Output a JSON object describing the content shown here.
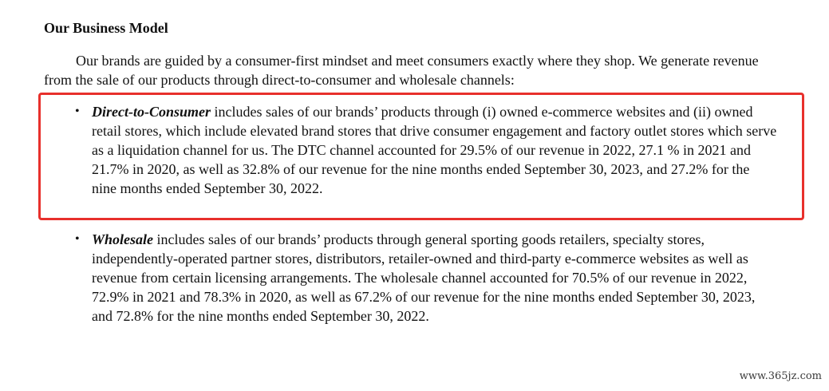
{
  "heading": "Our Business Model",
  "intro": "Our brands are guided by a consumer-first mindset and meet consumers exactly where they shop. We generate revenue from the sale of our products through direct-to-consumer and wholesale channels:",
  "bullets": [
    {
      "marker": "•",
      "term": "Direct-to-Consumer",
      "text": " includes sales of our brands’ products through (i) owned e-commerce websites and (ii) owned retail stores, which include elevated brand stores that drive consumer engagement and factory outlet stores which serve as a liquidation channel for us. The DTC channel accounted for 29.5% of our revenue in 2022, 27.1 % in 2021 and 21.7% in 2020, as well as 32.8% of our revenue for the nine months ended September 30, 2023, and 27.2% for the nine months ended September 30, 2022."
    },
    {
      "marker": "•",
      "term": "Wholesale",
      "text": " includes sales of our brands’ products through general sporting goods retailers, specialty stores, independently-operated partner stores, distributors, retailer-owned and third-party e-commerce websites as well as revenue from certain licensing arrangements. The wholesale channel accounted for 70.5% of our revenue in 2022, 72.9% in 2021 and 78.3% in 2020, as well as 67.2% of our revenue for the nine months ended September 30, 2023, and 72.8% for the nine months ended September 30, 2022."
    }
  ],
  "highlight_color": "#e8302c",
  "watermark": "www.365jz.com"
}
